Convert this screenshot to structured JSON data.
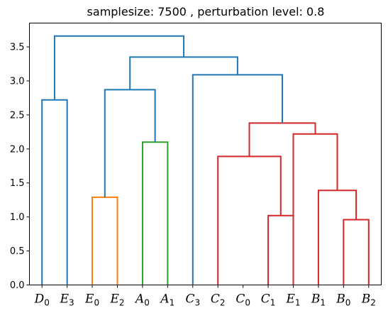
{
  "chart_data": {
    "type": "dendrogram",
    "title": "samplesize: 7500 , perturbation level: 0.8",
    "xlabel": "",
    "ylabel": "",
    "ylim": [
      0,
      3.85
    ],
    "yticks": [
      "0.0",
      "0.5",
      "1.0",
      "1.5",
      "2.0",
      "2.5",
      "3.0",
      "3.5"
    ],
    "grid": false,
    "leaves": [
      {
        "base": "D",
        "sub": "0"
      },
      {
        "base": "E",
        "sub": "3"
      },
      {
        "base": "E",
        "sub": "0"
      },
      {
        "base": "E",
        "sub": "2"
      },
      {
        "base": "A",
        "sub": "0"
      },
      {
        "base": "A",
        "sub": "1"
      },
      {
        "base": "C",
        "sub": "3"
      },
      {
        "base": "C",
        "sub": "2"
      },
      {
        "base": "C",
        "sub": "0"
      },
      {
        "base": "C",
        "sub": "1"
      },
      {
        "base": "E",
        "sub": "1"
      },
      {
        "base": "B",
        "sub": "1"
      },
      {
        "base": "B",
        "sub": "0"
      },
      {
        "base": "B",
        "sub": "2"
      }
    ],
    "colors": {
      "above_threshold": "#1f77b4",
      "cluster_orange": "#ff7f0e",
      "cluster_green": "#2ca02c",
      "cluster_red": "#d62728"
    },
    "merges": [
      {
        "left": 0,
        "right": 1,
        "height": 2.72,
        "color": "above_threshold"
      },
      {
        "left": 2,
        "right": 3,
        "height": 1.29,
        "color": "cluster_orange"
      },
      {
        "left": 4,
        "right": 5,
        "height": 2.1,
        "color": "cluster_green"
      },
      {
        "left": 9,
        "right": 10,
        "height": 1.02,
        "color": "cluster_red"
      },
      {
        "left": 7,
        "right": 17,
        "height": 1.89,
        "color": "cluster_red"
      },
      {
        "left": 12,
        "right": 13,
        "height": 0.96,
        "color": "cluster_red"
      },
      {
        "left": 11,
        "right": 19,
        "height": 1.39,
        "color": "cluster_red"
      },
      {
        "left": 10,
        "right": 20,
        "height": 2.22,
        "color": "cluster_red"
      },
      {
        "left": 18,
        "right": 21,
        "height": 2.38,
        "color": "cluster_red"
      },
      {
        "left": 15,
        "right": 16,
        "height": 2.87,
        "color": "above_threshold"
      },
      {
        "left": 6,
        "right": 22,
        "height": 3.09,
        "color": "above_threshold"
      },
      {
        "left": 23,
        "right": 24,
        "height": 3.35,
        "color": "above_threshold"
      },
      {
        "left": 14,
        "right": 25,
        "height": 3.66,
        "color": "above_threshold"
      }
    ]
  }
}
